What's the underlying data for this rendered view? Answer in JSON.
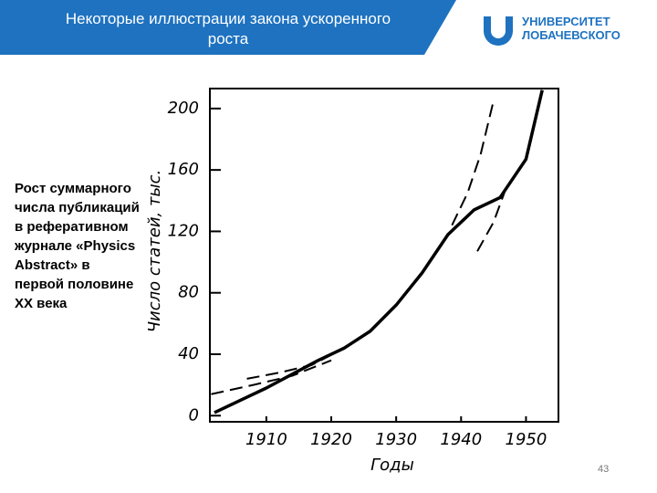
{
  "header": {
    "title": "Некоторые иллюстрации закона ускоренного роста",
    "logo_line1": "УНИВЕРСИТЕТ",
    "logo_line2": "ЛОБАЧЕВСКОГО"
  },
  "side_text": "Рост суммарного числа публикаций в реферативном журнале «Physics Abstract» в первой половине XX века",
  "page_number": "43",
  "chart_data": {
    "type": "line",
    "xlabel": "Годы",
    "ylabel": "Число статей, тыс.",
    "xlim": [
      1901.3,
      1955
    ],
    "xticks": [
      1910,
      1920,
      1930,
      1940,
      1950
    ],
    "ylim": [
      -4,
      213
    ],
    "yticks": [
      0,
      40,
      80,
      120,
      160,
      200
    ],
    "series": [
      {
        "color": "#000000",
        "style": "solid",
        "x": [
          1902,
          1906,
          1910,
          1914,
          1918,
          1922,
          1926,
          1930,
          1934,
          1938,
          1942,
          1946,
          1950,
          1952.5
        ],
        "values": [
          2,
          10,
          18,
          27,
          36,
          44,
          55,
          72,
          93,
          118,
          134,
          142,
          167,
          212
        ]
      },
      {
        "color": "#000000",
        "style": "dashed",
        "x": [
          1901.5,
          1908,
          1914,
          1920
        ],
        "values": [
          14,
          20,
          26,
          36
        ]
      },
      {
        "color": "#000000",
        "style": "dashed",
        "x": [
          1907,
          1912,
          1917,
          1922
        ],
        "values": [
          24,
          28,
          33,
          44
        ]
      },
      {
        "color": "#000000",
        "style": "dashed",
        "x": [
          1938.6,
          1941,
          1943,
          1945
        ],
        "values": [
          124,
          145,
          170,
          205
        ]
      },
      {
        "color": "#000000",
        "style": "dashed",
        "x": [
          1942.5,
          1945,
          1947
        ],
        "values": [
          107,
          126,
          149
        ]
      }
    ]
  }
}
